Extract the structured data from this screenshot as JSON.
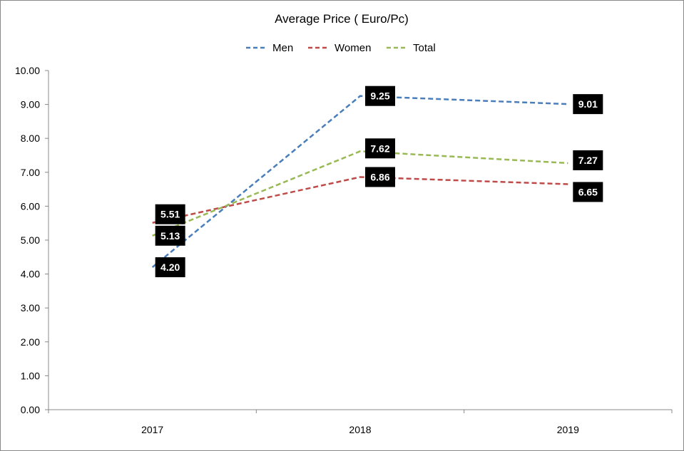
{
  "chart_data": {
    "type": "line",
    "title": "Average Price ( Euro/Pc)",
    "xlabel": "",
    "ylabel": "",
    "categories": [
      "2017",
      "2018",
      "2019"
    ],
    "ylim": [
      0,
      10
    ],
    "yticks": [
      "0.00",
      "1.00",
      "2.00",
      "3.00",
      "4.00",
      "5.00",
      "6.00",
      "7.00",
      "8.00",
      "9.00",
      "10.00"
    ],
    "grid": false,
    "legend_position": "top-center",
    "series": [
      {
        "name": "Men",
        "color": "#4a7ebb",
        "values": [
          4.2,
          9.25,
          9.01
        ],
        "labels": [
          "4.20",
          "9.25",
          "9.01"
        ]
      },
      {
        "name": "Women",
        "color": "#be4b48",
        "values": [
          5.51,
          6.86,
          6.65
        ],
        "labels": [
          "5.51",
          "6.86",
          "6.65"
        ]
      },
      {
        "name": "Total",
        "color": "#98b954",
        "values": [
          5.13,
          7.62,
          7.27
        ],
        "labels": [
          "5.13",
          "7.62",
          "7.27"
        ]
      }
    ]
  }
}
